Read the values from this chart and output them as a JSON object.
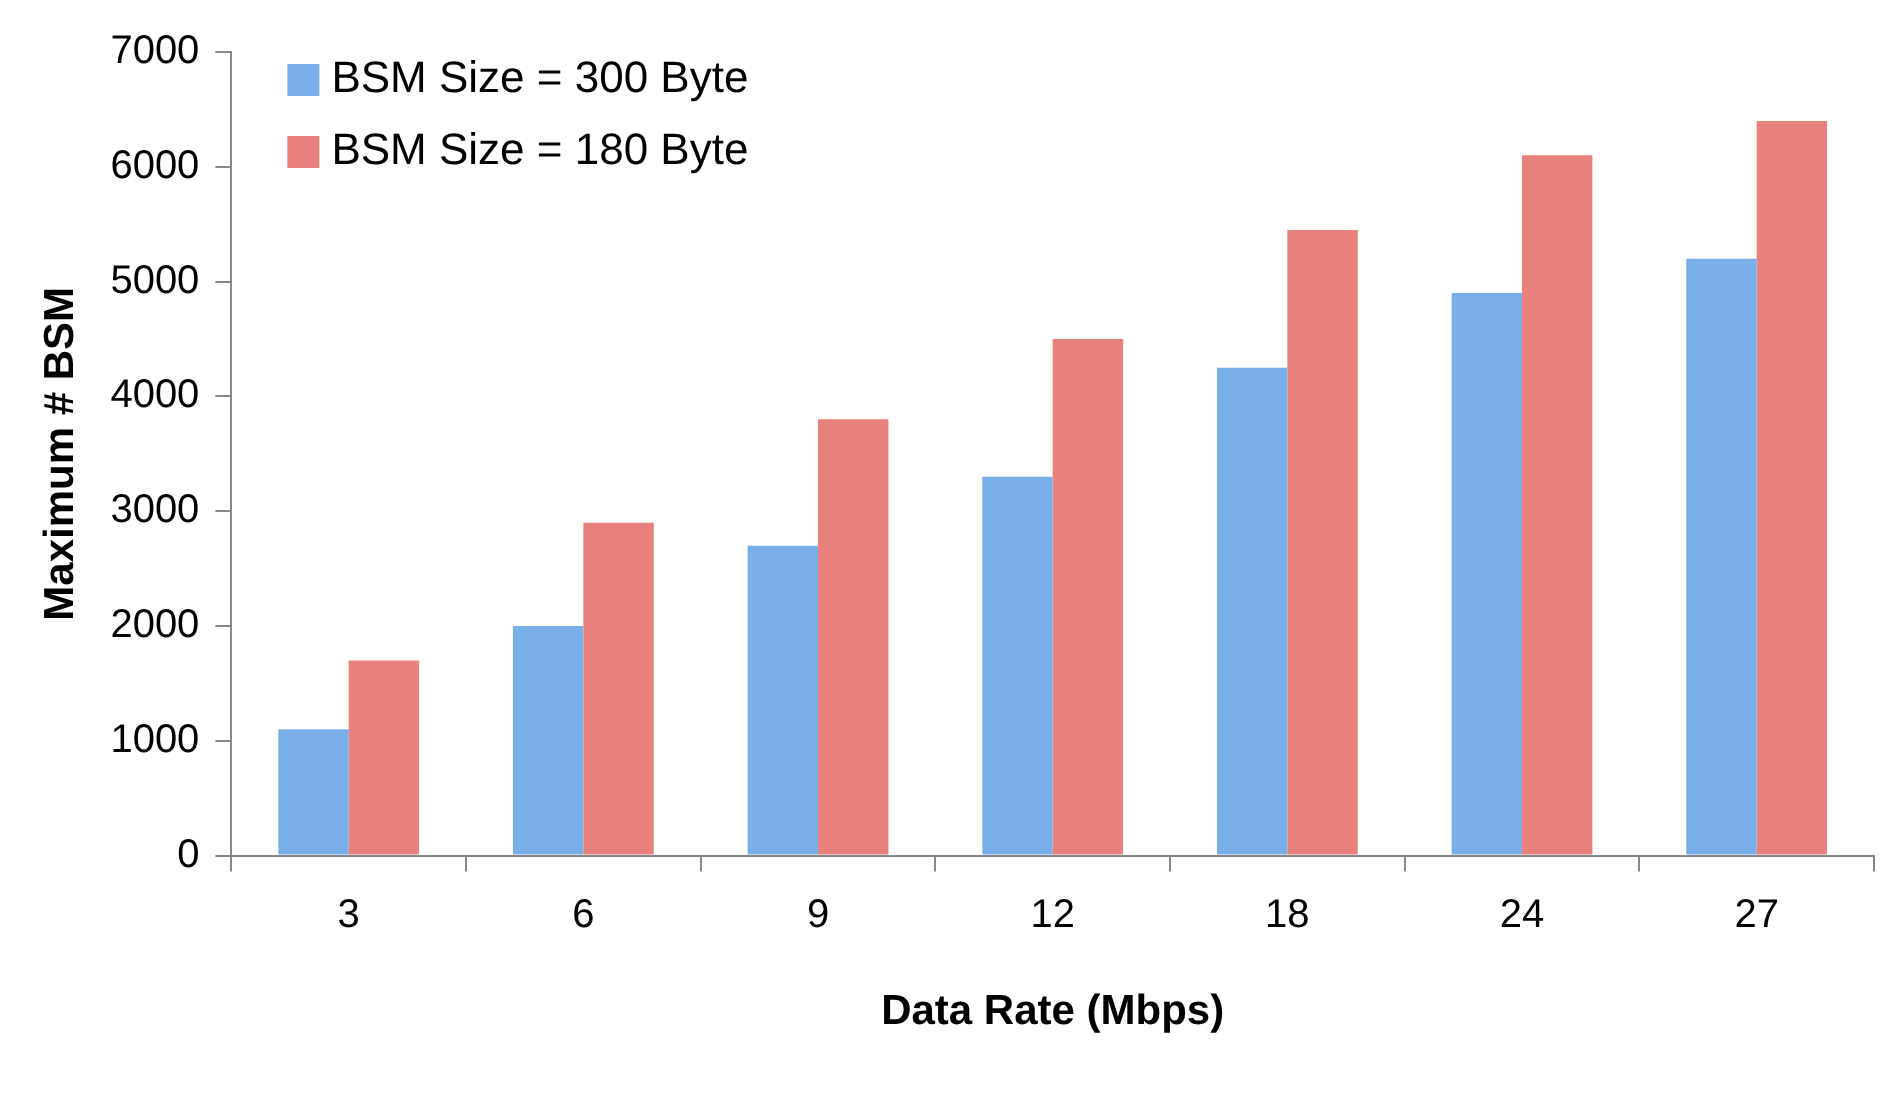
{
  "chart_data": {
    "type": "bar",
    "xlabel": "Data Rate (Mbps)",
    "ylabel": "Maximum # BSM",
    "categories": [
      "3",
      "6",
      "9",
      "12",
      "18",
      "24",
      "27"
    ],
    "series": [
      {
        "name": "BSM Size = 300 Byte",
        "color": "#7aaee8",
        "values": [
          1100,
          2000,
          2700,
          3300,
          4250,
          4900,
          5200
        ]
      },
      {
        "name": "BSM Size = 180 Byte",
        "color": "#e8807e",
        "values": [
          1700,
          2900,
          3800,
          4500,
          5450,
          6100,
          6400
        ]
      }
    ],
    "ylim": [
      0,
      7000
    ],
    "yticks": [
      0,
      1000,
      2000,
      3000,
      4000,
      5000,
      6000,
      7000
    ],
    "grid": false,
    "legend": "top left"
  }
}
